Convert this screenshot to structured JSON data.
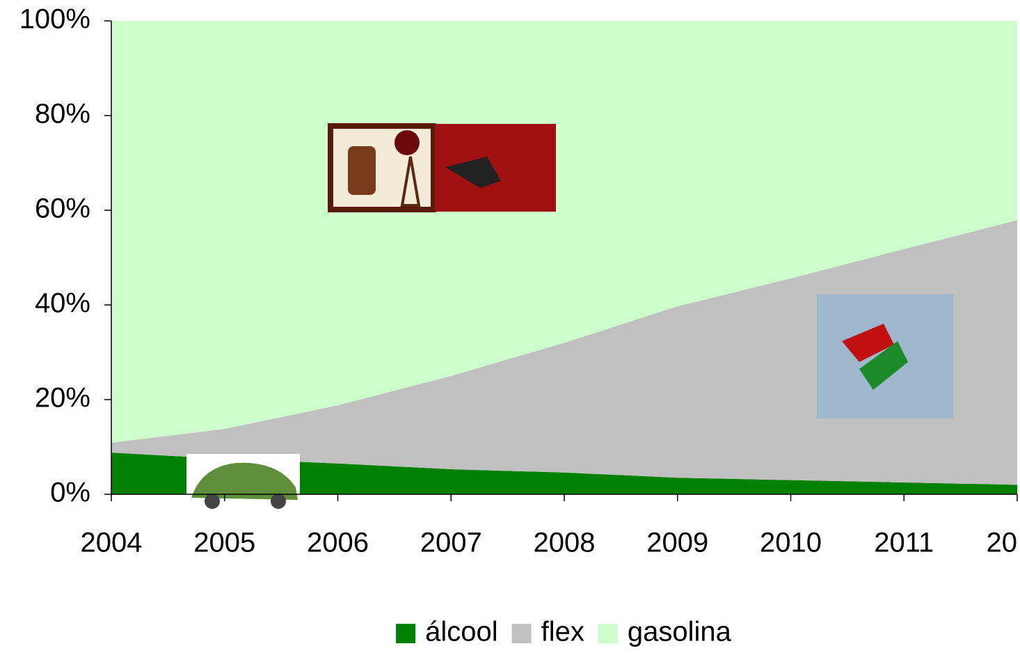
{
  "chart_data": {
    "type": "area",
    "stacked": true,
    "categories": [
      "2004",
      "2005",
      "2006",
      "2007",
      "2008",
      "2009",
      "2010",
      "2011",
      "20"
    ],
    "series": [
      {
        "name": "álcool",
        "color": "#008000",
        "values": [
          8.8,
          7.5,
          6.5,
          5.3,
          4.6,
          3.5,
          3.0,
          2.5,
          2.0
        ]
      },
      {
        "name": "flex",
        "color": "#c0c0c0",
        "values": [
          2.1,
          6.3,
          12.3,
          19.7,
          27.4,
          36.2,
          42.6,
          49.3,
          55.9
        ]
      },
      {
        "name": "gasolina",
        "color": "#ccffcc",
        "values": [
          89.1,
          86.2,
          81.2,
          75.0,
          68.0,
          60.3,
          54.4,
          48.2,
          42.1
        ]
      }
    ],
    "ylim": [
      0,
      100
    ],
    "yticks": [
      {
        "value": 0,
        "label": "0%"
      },
      {
        "value": 20,
        "label": "20%"
      },
      {
        "value": 40,
        "label": "40%"
      },
      {
        "value": 60,
        "label": "60%"
      },
      {
        "value": 80,
        "label": "80%"
      },
      {
        "value": 100,
        "label": "100%"
      }
    ],
    "legend": "bottom"
  }
}
